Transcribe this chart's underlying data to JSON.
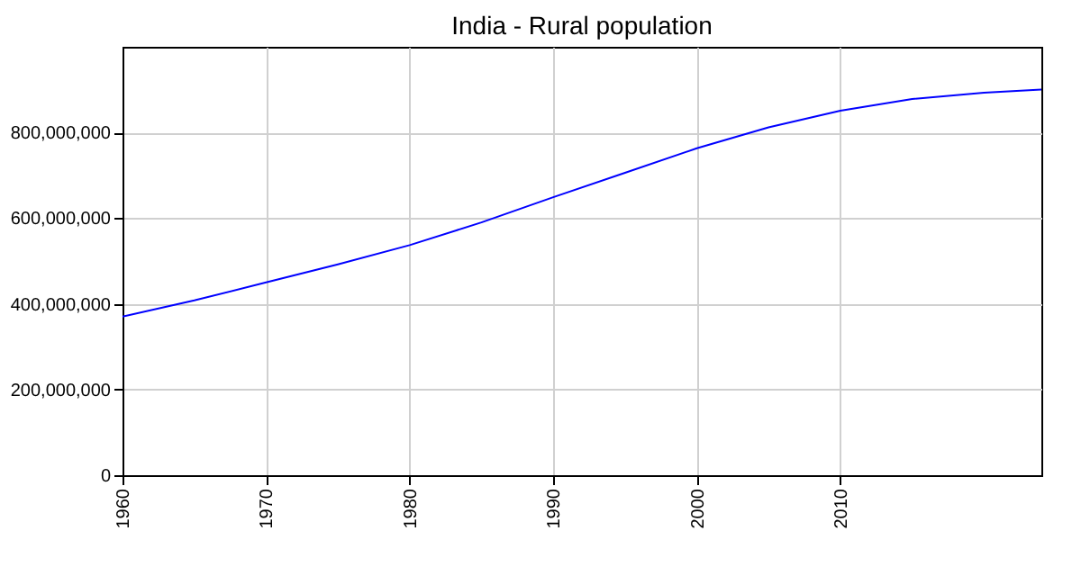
{
  "chart_data": {
    "type": "line",
    "title": "India - Rural population",
    "x": [
      1960,
      1965,
      1970,
      1975,
      1980,
      1985,
      1990,
      1995,
      2000,
      2005,
      2010,
      2015,
      2020,
      2024
    ],
    "series": [
      {
        "color": "#0000ff",
        "values": [
          370000000,
          408000000,
          450000000,
          492000000,
          537000000,
          590000000,
          649000000,
          706000000,
          763000000,
          812000000,
          851000000,
          878000000,
          893000000,
          900000000
        ]
      }
    ],
    "xlim": [
      1960,
      2024
    ],
    "xticks": [
      1960,
      1970,
      1980,
      1990,
      2000,
      2010
    ],
    "ylim": [
      0,
      1000000000
    ],
    "yticks": [
      0,
      {
        "value": 200000000,
        "label": "200,000,000"
      },
      {
        "value": 400000000,
        "label": "400,000,000"
      },
      {
        "value": 600000000,
        "label": "600,000,000"
      },
      {
        "value": 800000000,
        "label": "800,000,000"
      }
    ],
    "grid": true,
    "marker": "none",
    "line_style": "solid"
  }
}
